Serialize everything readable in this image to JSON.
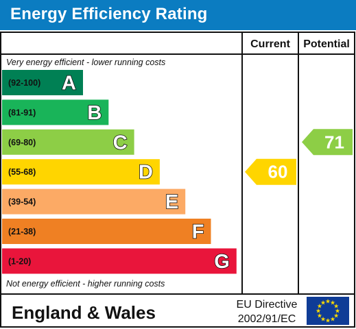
{
  "header": {
    "title": "Energy Efficiency Rating",
    "bg_color": "#0b7cc1"
  },
  "chart_data": {
    "type": "bar",
    "columns": {
      "current": "Current",
      "potential": "Potential"
    },
    "top_note": "Very energy efficient - lower running costs",
    "bottom_note": "Not energy efficient - higher running costs",
    "bands": [
      {
        "letter": "A",
        "range": "(92-100)",
        "min": 92,
        "max": 100,
        "color": "#008054"
      },
      {
        "letter": "B",
        "range": "(81-91)",
        "min": 81,
        "max": 91,
        "color": "#19b459"
      },
      {
        "letter": "C",
        "range": "(69-80)",
        "min": 69,
        "max": 80,
        "color": "#8dce46"
      },
      {
        "letter": "D",
        "range": "(55-68)",
        "min": 55,
        "max": 68,
        "color": "#ffd500"
      },
      {
        "letter": "E",
        "range": "(39-54)",
        "min": 39,
        "max": 54,
        "color": "#fcaa65"
      },
      {
        "letter": "F",
        "range": "(21-38)",
        "min": 21,
        "max": 38,
        "color": "#ef8023"
      },
      {
        "letter": "G",
        "range": "(1-20)",
        "min": 1,
        "max": 20,
        "color": "#e9153b"
      }
    ],
    "current": {
      "value": 60,
      "band": "D",
      "color": "#ffd500"
    },
    "potential": {
      "value": 71,
      "band": "C",
      "color": "#8dce46"
    }
  },
  "footer": {
    "region": "England & Wales",
    "directive_line1": "EU Directive",
    "directive_line2": "2002/91/EC",
    "flag_color": "#0f3c96",
    "star_color": "#ffdd00"
  }
}
